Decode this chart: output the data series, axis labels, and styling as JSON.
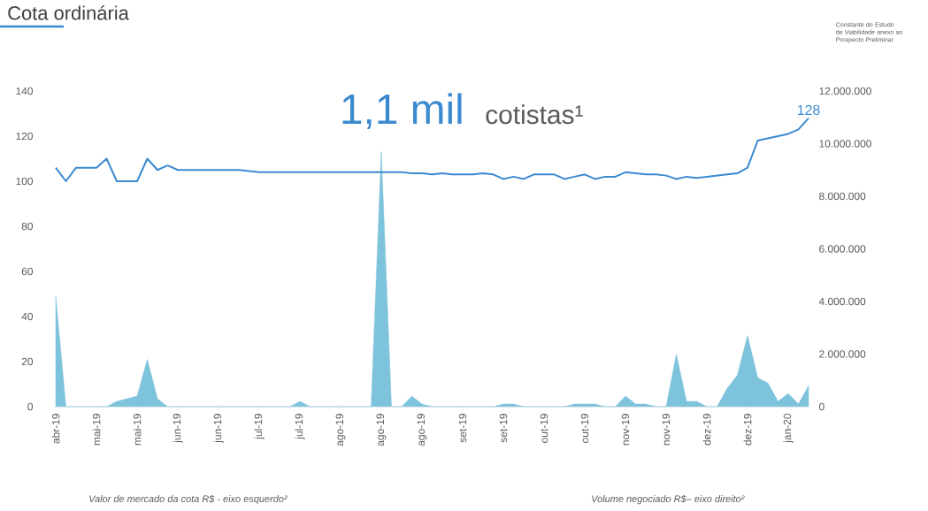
{
  "chart_data": {
    "type": "line",
    "title": "Cota ordinária",
    "annotations": [
      "1,1 mil",
      "cotistas¹",
      "Constante do Estudo de Viabilidade anexo ao Prospecto Preliminar",
      "Valor de mercado da cota R$ - eixo esquerdo²",
      "Volume negociado R$– eixo direito²"
    ],
    "categories": [
      "abr-19",
      null,
      null,
      null,
      "mai-19",
      null,
      null,
      null,
      "mai-19",
      null,
      null,
      null,
      "jun-19",
      null,
      null,
      null,
      "jun-19",
      null,
      null,
      null,
      "jul-19",
      null,
      null,
      null,
      "jul-19",
      null,
      null,
      null,
      "ago-19",
      null,
      null,
      null,
      "ago-19",
      null,
      null,
      null,
      "ago-19",
      null,
      null,
      null,
      "set-19",
      null,
      null,
      null,
      "set-19",
      null,
      null,
      null,
      "out-19",
      null,
      null,
      null,
      "out-19",
      null,
      null,
      null,
      "nov-19",
      null,
      null,
      null,
      "nov-19",
      null,
      null,
      null,
      "dez-19",
      null,
      null,
      null,
      "dez-19",
      null,
      null,
      null,
      "jan-20",
      null,
      null
    ],
    "series": [
      {
        "type": "area",
        "axis": "y2",
        "color": "#7ec3dc",
        "values": [
          4200000,
          0,
          0,
          0,
          0,
          0,
          200000,
          300000,
          400000,
          1800000,
          300000,
          0,
          0,
          0,
          0,
          0,
          0,
          0,
          0,
          0,
          0,
          0,
          0,
          0,
          200000,
          0,
          0,
          0,
          0,
          0,
          0,
          0,
          9700000,
          0,
          0,
          400000,
          100000,
          0,
          0,
          0,
          0,
          0,
          0,
          0,
          100000,
          100000,
          0,
          0,
          0,
          0,
          0,
          100000,
          100000,
          100000,
          0,
          0,
          400000,
          100000,
          100000,
          0,
          0,
          2000000,
          200000,
          200000,
          0,
          0,
          700000,
          1200000,
          2700000,
          1100000,
          900000,
          200000,
          500000,
          100000,
          800000
        ]
      },
      {
        "color": "#3b8ad0",
        "values": [
          106,
          100,
          106,
          106,
          106,
          110,
          100,
          100,
          100,
          110,
          105,
          107,
          105,
          105,
          105,
          105,
          105,
          105,
          105,
          104.5,
          104,
          104,
          104,
          104,
          104,
          104,
          104,
          104,
          104,
          104,
          104,
          104,
          104,
          104,
          104,
          103.5,
          103.5,
          103,
          103.5,
          103,
          103,
          103,
          103.5,
          103,
          101,
          102,
          101,
          103,
          103,
          103,
          101,
          102,
          103,
          101,
          102,
          102,
          104,
          103.5,
          103,
          103,
          102.5,
          101,
          102,
          101.5,
          102,
          102.5,
          103,
          103.5,
          106,
          118,
          119,
          120,
          121,
          123,
          128
        ],
        "value_labels": [
          null,
          null,
          null,
          null,
          null,
          null,
          null,
          null,
          null,
          null,
          null,
          null,
          null,
          null,
          null,
          null,
          null,
          null,
          null,
          null,
          null,
          null,
          null,
          null,
          null,
          null,
          null,
          null,
          null,
          null,
          null,
          null,
          null,
          null,
          null,
          null,
          null,
          null,
          null,
          null,
          null,
          null,
          null,
          null,
          null,
          null,
          null,
          null,
          null,
          null,
          null,
          null,
          null,
          null,
          null,
          null,
          null,
          null,
          null,
          null,
          null,
          null,
          null,
          null,
          null,
          null,
          null,
          null,
          null,
          null,
          null,
          null,
          null,
          null,
          "128"
        ]
      }
    ],
    "ylim": [
      0,
      140
    ],
    "yticks": [
      0,
      20,
      40,
      60,
      80,
      100,
      120,
      140
    ],
    "y2lim": [
      0,
      12000000
    ],
    "y2ticks": [
      {
        "value": 0,
        "label": "0"
      },
      {
        "value": 2000000,
        "label": "2.000.000"
      },
      {
        "value": 4000000,
        "label": "4.000.000"
      },
      {
        "value": 6000000,
        "label": "6.000.000"
      },
      {
        "value": 8000000,
        "label": "8.000.000"
      },
      {
        "value": 10000000,
        "label": "10.000.000"
      },
      {
        "value": 12000000,
        "label": "12.000.000"
      }
    ]
  }
}
